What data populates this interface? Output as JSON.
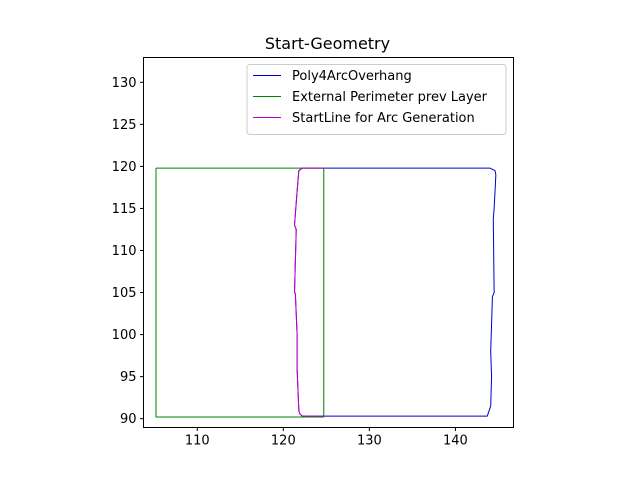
{
  "chart_data": {
    "type": "line",
    "title": "Start-Geometry",
    "xlabel": "",
    "ylabel": "",
    "xlim": [
      103.75,
      146.75
    ],
    "ylim": [
      88.95,
      132.95
    ],
    "xticks": [
      110,
      120,
      130,
      140
    ],
    "yticks": [
      90,
      95,
      100,
      105,
      110,
      115,
      120,
      125,
      130
    ],
    "grid": false,
    "legend_position": "top-right",
    "series": [
      {
        "name": "Poly4ArcOverhang",
        "color": "#0000cc",
        "x": [
          122.2,
          144.0,
          144.6,
          144.7,
          144.5,
          144.4,
          144.5,
          144.3,
          144.1,
          144.2,
          144.1,
          143.7,
          122.2,
          121.9,
          121.8,
          121.6,
          121.6,
          121.4,
          121.3,
          121.5,
          121.3,
          121.6,
          121.8,
          122.2
        ],
        "y": [
          119.8,
          119.8,
          119.5,
          119.0,
          115.0,
          113.8,
          105.0,
          104.5,
          98.0,
          95.0,
          91.5,
          90.3,
          90.3,
          90.6,
          91.0,
          96.0,
          100.0,
          104.9,
          105.0,
          112.5,
          113.0,
          117.0,
          119.5,
          119.8
        ]
      },
      {
        "name": "External Perimeter prev Layer",
        "color": "#008000",
        "x": [
          105.2,
          124.7,
          124.7,
          105.2,
          105.2
        ],
        "y": [
          119.8,
          119.8,
          90.2,
          90.2,
          119.8
        ]
      },
      {
        "name": "StartLine for Arc Generation",
        "color": "#bf00bf",
        "x": [
          124.7,
          122.2,
          121.8,
          121.6,
          121.3,
          121.5,
          121.3,
          121.4,
          121.6,
          121.6,
          121.8,
          121.9,
          122.2,
          124.7
        ],
        "y": [
          119.8,
          119.8,
          119.5,
          117.0,
          113.0,
          112.5,
          105.0,
          104.9,
          100.0,
          96.0,
          91.0,
          90.6,
          90.3,
          90.3
        ]
      }
    ]
  }
}
